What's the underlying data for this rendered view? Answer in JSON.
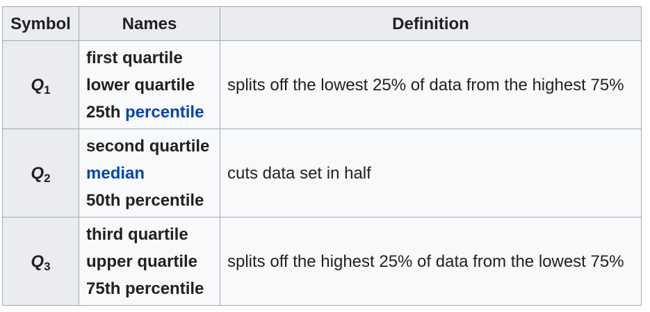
{
  "table": {
    "headers": {
      "symbol": "Symbol",
      "names": "Names",
      "definition": "Definition"
    },
    "rows": [
      {
        "symbol_letter": "Q",
        "symbol_sub": "1",
        "names": {
          "line1": "first quartile",
          "line2": "lower quartile",
          "line3_prefix": "25th",
          "line3_link": "percentile"
        },
        "definition": "splits off the lowest 25% of data from the highest 75%"
      },
      {
        "symbol_letter": "Q",
        "symbol_sub": "2",
        "names": {
          "line1": "second quartile",
          "line2_link": "median",
          "line3": "50th percentile"
        },
        "definition": "cuts data set in half"
      },
      {
        "symbol_letter": "Q",
        "symbol_sub": "3",
        "names": {
          "line1": "third quartile",
          "line2": "upper quartile",
          "line3": "75th percentile"
        },
        "definition": "splits off the highest 25% of data from the lowest 75%"
      }
    ]
  },
  "colors": {
    "link": "#0645ad",
    "header_bg": "#eaecf0",
    "cell_bg": "#f8f9fa",
    "border": "#a2a9b1",
    "text": "#202122"
  }
}
